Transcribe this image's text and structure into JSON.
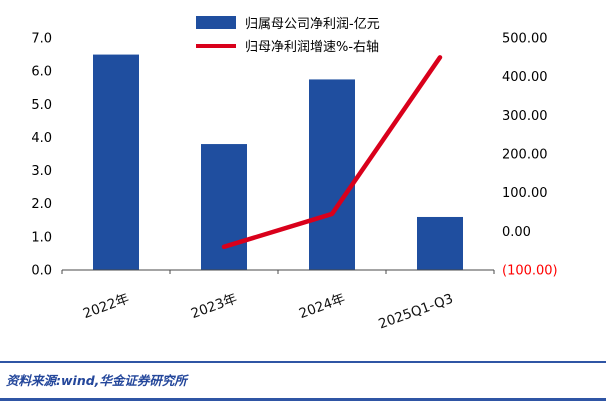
{
  "chart_data": {
    "type": "combo",
    "categories": [
      "2022年",
      "2023年",
      "2024年",
      "2025Q1-Q3"
    ],
    "series": [
      {
        "name": "归属母公司净利润-亿元",
        "type": "bar",
        "axis": "left",
        "color": "#1F4E9F",
        "values": [
          6.5,
          3.8,
          5.75,
          1.6
        ]
      },
      {
        "name": "归母净利润增速%-右轴",
        "type": "line",
        "axis": "right",
        "color": "#D9001B",
        "values": [
          null,
          -40,
          45,
          450
        ]
      }
    ],
    "left_axis": {
      "min": 0,
      "max": 7,
      "step": 1,
      "ticks": [
        "7.0",
        "6.0",
        "5.0",
        "4.0",
        "3.0",
        "2.0",
        "1.0",
        "0.0"
      ]
    },
    "right_axis": {
      "min": -100,
      "max": 500,
      "step": 100,
      "ticks": [
        "500.00",
        "400.00",
        "300.00",
        "200.00",
        "100.00",
        "0.00",
        "(100.00)"
      ],
      "negative_color": "#FF0000"
    },
    "legend_position": "top",
    "grid": false,
    "source_note": "资料来源:wind,华金证券研究所"
  }
}
